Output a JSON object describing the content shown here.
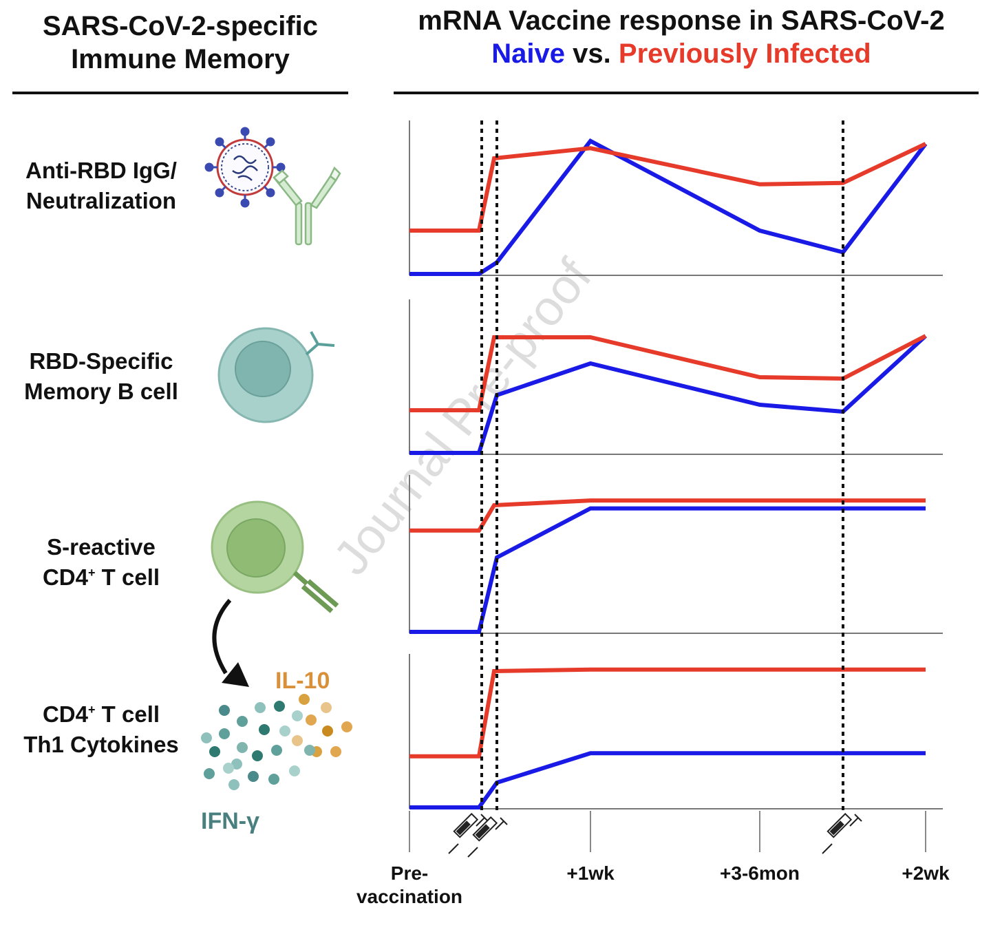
{
  "left_header": {
    "line1": "SARS-CoV-2-specific",
    "line2": "Immune Memory"
  },
  "right_header": {
    "line1": "mRNA Vaccine response in SARS-CoV-2",
    "naive": "Naive",
    "vs": " vs. ",
    "prev": "Previously Infected"
  },
  "rows": [
    {
      "line1": "Anti-RBD IgG/",
      "line2": "Neutralization"
    },
    {
      "line1": "RBD-Specific",
      "line2": "Memory B cell"
    },
    {
      "line1": "S-reactive",
      "line2_pre": "CD4",
      "line2_sup": "+",
      "line2_post": " T cell"
    },
    {
      "line1_pre": "CD4",
      "line1_sup": "+",
      "line1_post": " T cell",
      "line2": "Th1 Cytokines"
    }
  ],
  "cytokines": {
    "il10": "IL-10",
    "ifng": "IFN-γ"
  },
  "watermark": "Journal Pre-proof",
  "colors": {
    "naive": "#1a1ae6",
    "previously_infected": "#e63a2a",
    "il10": "#d9903a",
    "ifng": "#4a7f80"
  },
  "chart_data": {
    "type": "line",
    "x": [
      0,
      0.5,
      0.6,
      1.5,
      2.5,
      3.5,
      3.75
    ],
    "xticks": [
      {
        "value": 0,
        "label": "Pre-\nvaccination"
      },
      {
        "value": 1.5,
        "label": "+1wk"
      },
      {
        "value": 2.5,
        "label": "+3-6mon"
      },
      {
        "value": 3.75,
        "label": "+2wk"
      }
    ],
    "vaccinations": [
      0.5,
      0.6,
      3.5
    ],
    "ylim": [
      0,
      1
    ],
    "panels": [
      {
        "name": "Anti-RBD IgG/Neutralization",
        "series": [
          {
            "name": "Naive",
            "values": [
              0,
              0,
              0.08,
              0.92,
              0.3,
              0.15,
              0.9
            ]
          },
          {
            "name": "Previously Infected",
            "values": [
              0.3,
              0.3,
              0.8,
              0.87,
              0.62,
              0.63,
              0.9
            ]
          }
        ]
      },
      {
        "name": "RBD-Specific Memory B cell",
        "series": [
          {
            "name": "Naive",
            "values": [
              0,
              0,
              0.42,
              0.65,
              0.35,
              0.3,
              0.85
            ]
          },
          {
            "name": "Previously Infected",
            "values": [
              0.31,
              0.31,
              0.84,
              0.84,
              0.55,
              0.54,
              0.85
            ]
          }
        ]
      },
      {
        "name": "S-reactive CD4+ T cell",
        "series": [
          {
            "name": "Naive",
            "values": [
              0,
              0,
              0.47,
              0.78,
              0.78,
              0.78,
              0.78
            ]
          },
          {
            "name": "Previously Infected",
            "values": [
              0.64,
              0.64,
              0.8,
              0.83,
              0.83,
              0.83,
              0.83
            ]
          }
        ]
      },
      {
        "name": "CD4+ T cell Th1 Cytokines",
        "series": [
          {
            "name": "Naive",
            "values": [
              0,
              0,
              0.16,
              0.35,
              0.35,
              0.35,
              0.35
            ]
          },
          {
            "name": "Previously Infected",
            "values": [
              0.33,
              0.33,
              0.88,
              0.89,
              0.89,
              0.89,
              0.89
            ]
          }
        ]
      }
    ]
  }
}
